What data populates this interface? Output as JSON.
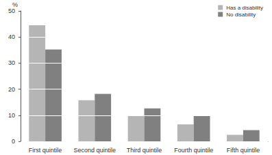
{
  "chart_data": {
    "type": "bar",
    "y_label": "%",
    "categories": [
      "First quintile",
      "Second quintile",
      "Third quintile",
      "Fourth quintile",
      "Fifth quintile"
    ],
    "series": [
      {
        "name": "Has a disability",
        "color": "#b5b5b5",
        "values": [
          44.5,
          15.8,
          9.8,
          6.5,
          2.5
        ]
      },
      {
        "name": "No disability",
        "color": "#808080",
        "values": [
          35.2,
          18.2,
          12.6,
          9.7,
          4.3
        ]
      }
    ],
    "ylim": [
      0,
      50
    ],
    "yticks": [
      0,
      10,
      20,
      30,
      40,
      50
    ],
    "grid": true,
    "legend": "top-right"
  }
}
